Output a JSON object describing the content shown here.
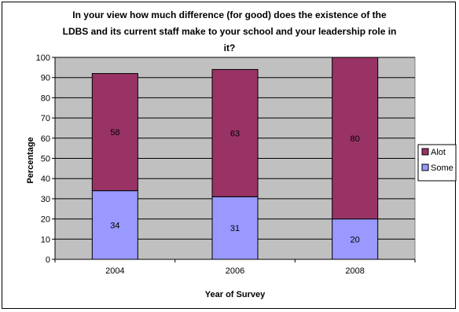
{
  "chart_data": {
    "type": "bar",
    "stacked": true,
    "title_lines": [
      "In your view how much difference (for good) does the existence of the",
      "LDBS and its current staff make to your school and your leadership role in",
      "it?"
    ],
    "xlabel": "Year of Survey",
    "ylabel": "Percentage",
    "categories": [
      "2004",
      "2006",
      "2008"
    ],
    "series": [
      {
        "name": "Some",
        "values": [
          34,
          31,
          20
        ],
        "color": "#9999ff"
      },
      {
        "name": "Alot",
        "values": [
          58,
          63,
          80
        ],
        "color": "#993366"
      }
    ],
    "legend_order": [
      "Alot",
      "Some"
    ],
    "legend_position": "right",
    "ylim": [
      0,
      100
    ],
    "yticks": [
      "0",
      "10",
      "20",
      "30",
      "40",
      "50",
      "60",
      "70",
      "80",
      "90",
      "100"
    ],
    "plot_background": "#c0c0c0",
    "grid": true
  }
}
